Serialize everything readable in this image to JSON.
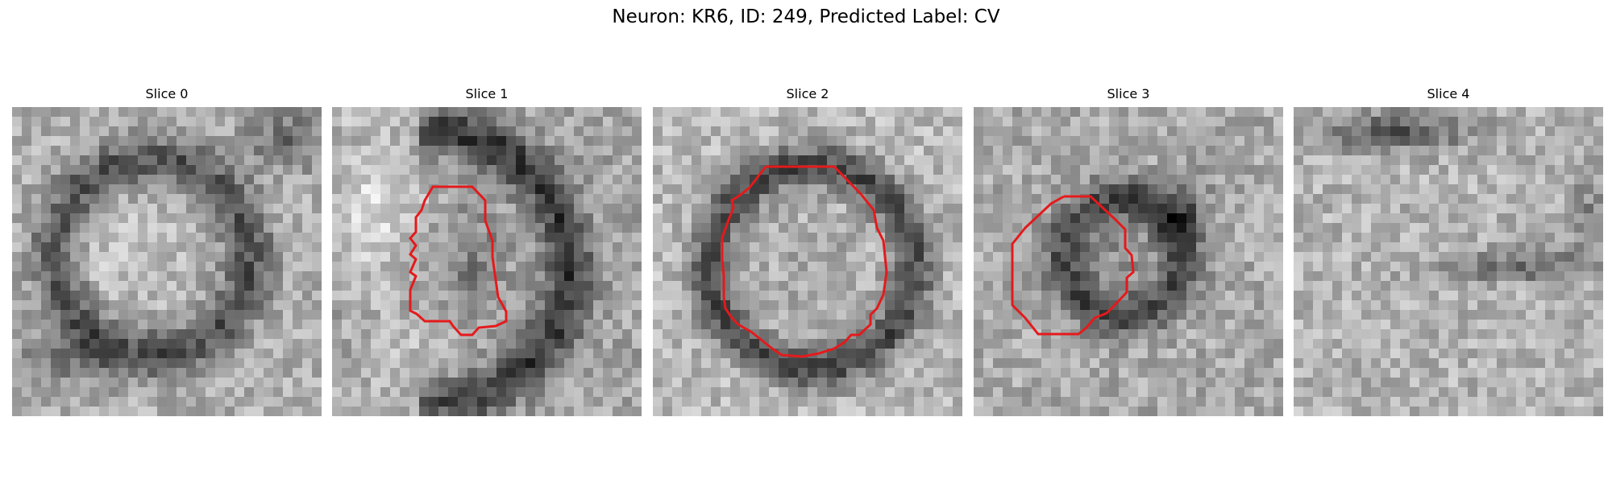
{
  "figure": {
    "title": "Neuron: KR6, ID: 249, Predicted Label: CV"
  },
  "panels": [
    {
      "title": "Slice 0",
      "has_contour": false
    },
    {
      "title": "Slice 1",
      "has_contour": true
    },
    {
      "title": "Slice 2",
      "has_contour": true
    },
    {
      "title": "Slice 3",
      "has_contour": true
    },
    {
      "title": "Slice 4",
      "has_contour": false
    }
  ],
  "colors": {
    "contour": "#e41a1c",
    "background": "#ffffff"
  }
}
